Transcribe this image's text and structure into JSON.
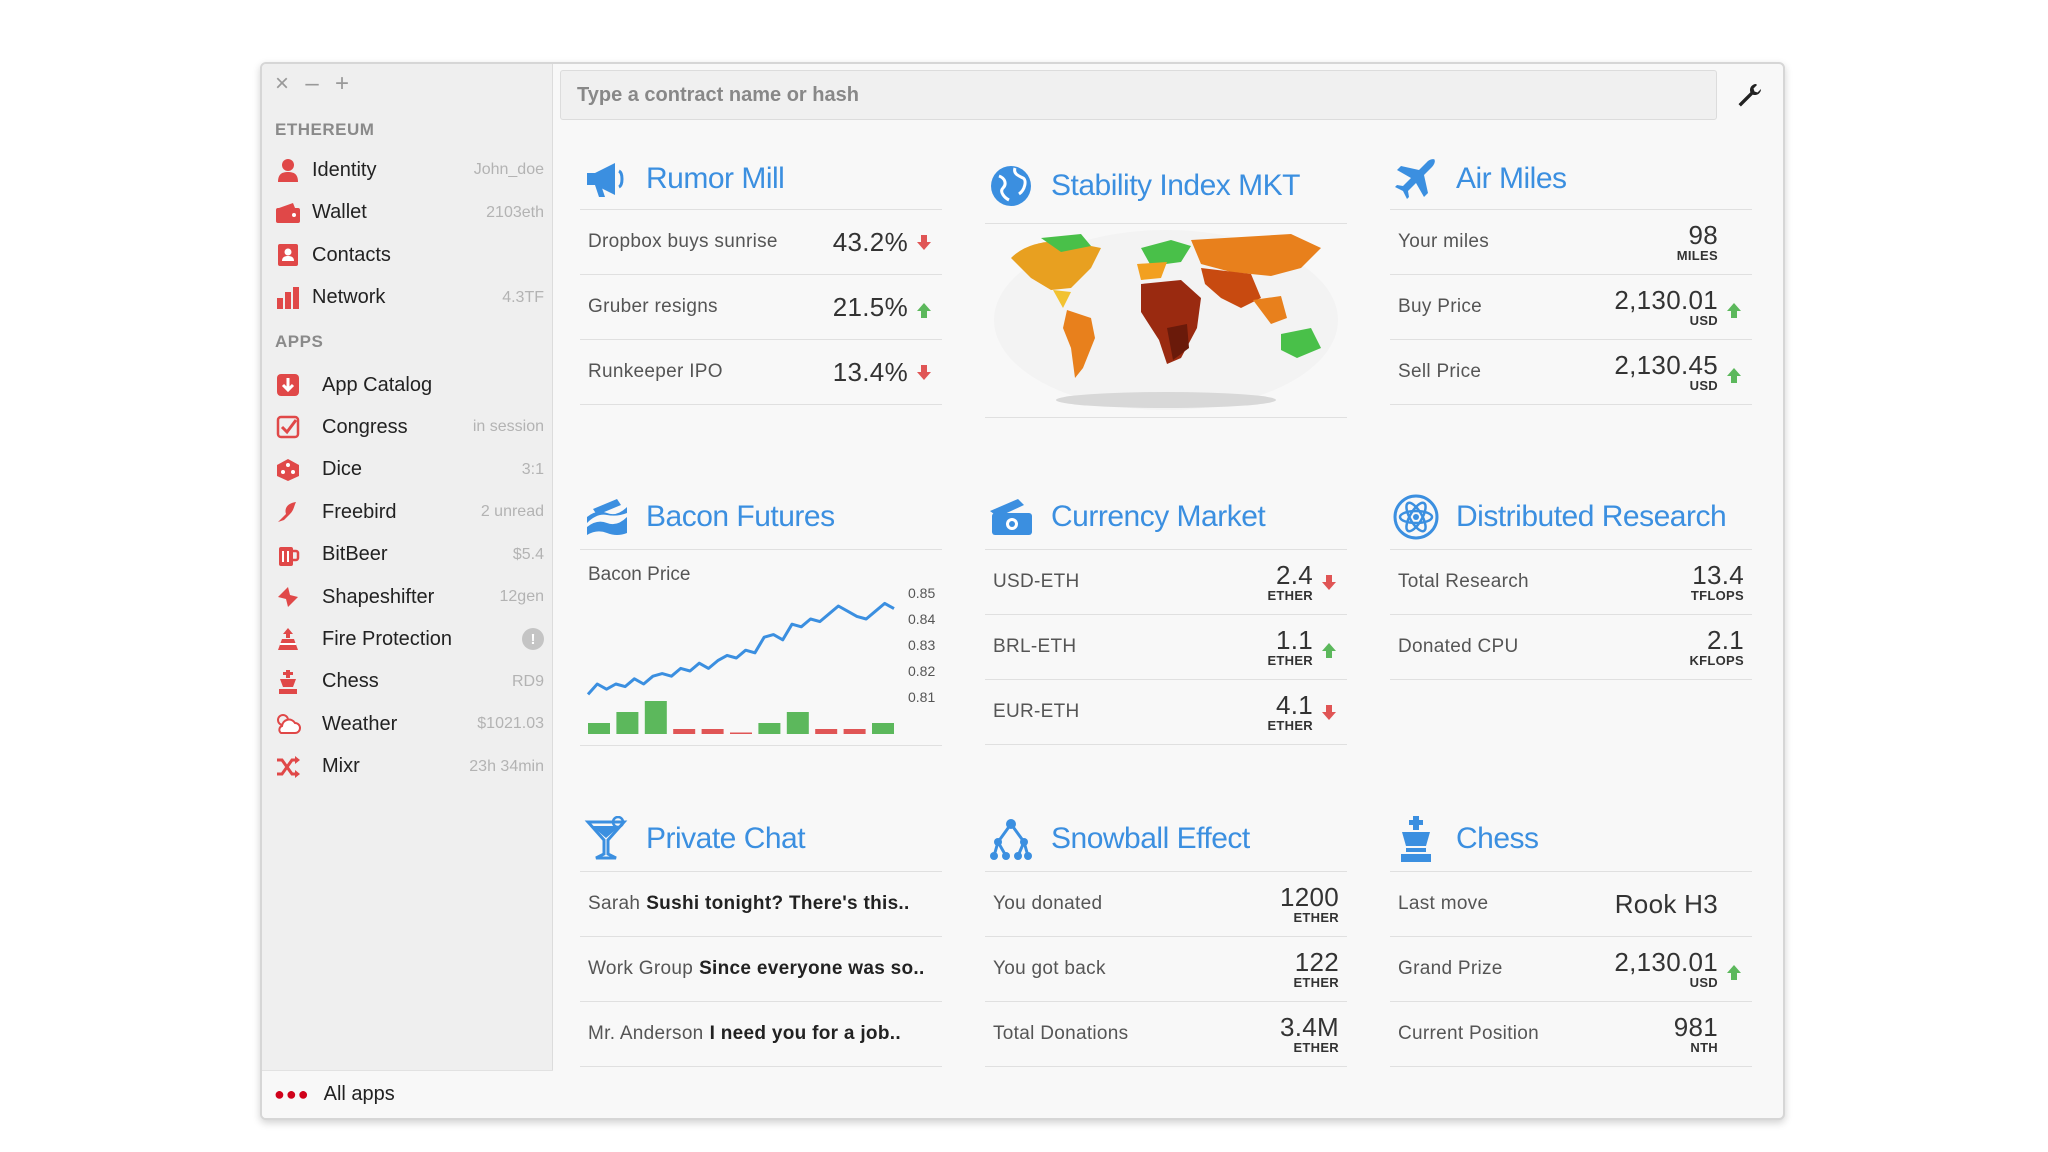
{
  "search": {
    "placeholder": "Type a contract name or hash"
  },
  "sidebar": {
    "ethereum_title": "ETHEREUM",
    "ethereum_items": [
      {
        "label": "Identity",
        "meta": "John_doe",
        "icon": "user-icon"
      },
      {
        "label": "Wallet",
        "meta": "2103eth",
        "icon": "wallet-icon"
      },
      {
        "label": "Contacts",
        "meta": "",
        "icon": "contacts-icon"
      },
      {
        "label": "Network",
        "meta": "4.3TF",
        "icon": "bar-chart-icon"
      }
    ],
    "apps_title": "APPS",
    "app_items": [
      {
        "label": "App Catalog",
        "meta": "",
        "icon": "catalog-icon"
      },
      {
        "label": "Congress",
        "meta": "in session",
        "icon": "checkbox-icon"
      },
      {
        "label": "Dice",
        "meta": "3:1",
        "icon": "dice-icon"
      },
      {
        "label": "Freebird",
        "meta": "2 unread",
        "icon": "bird-icon"
      },
      {
        "label": "BitBeer",
        "meta": "$5.4",
        "icon": "beer-icon"
      },
      {
        "label": "Shapeshifter",
        "meta": "12gen",
        "icon": "shapeshifter-icon"
      },
      {
        "label": "Fire Protection",
        "meta": "!",
        "icon": "fire-icon"
      },
      {
        "label": "Chess",
        "meta": "RD9",
        "icon": "chess-icon"
      },
      {
        "label": "Weather",
        "meta": "$1021.03",
        "icon": "weather-icon"
      },
      {
        "label": "Mixr",
        "meta": "23h 34min",
        "icon": "shuffle-icon"
      }
    ],
    "all_apps": "All apps"
  },
  "rumor_mill": {
    "title": "Rumor Mill",
    "rows": [
      {
        "label": "Dropbox buys sunrise",
        "value": "43.2%",
        "trend": "down"
      },
      {
        "label": "Gruber resigns",
        "value": "21.5%",
        "trend": "up"
      },
      {
        "label": "Runkeeper IPO",
        "value": "13.4%",
        "trend": "down"
      }
    ]
  },
  "stability": {
    "title": "Stability Index MKT"
  },
  "air_miles": {
    "title": "Air Miles",
    "rows": [
      {
        "label": "Your miles",
        "value": "98",
        "unit": "MILES",
        "trend": ""
      },
      {
        "label": "Buy Price",
        "value": "2,130.01",
        "unit": "USD",
        "trend": "up"
      },
      {
        "label": "Sell Price",
        "value": "2,130.45",
        "unit": "USD",
        "trend": "up"
      }
    ]
  },
  "bacon": {
    "title": "Bacon Futures",
    "label": "Bacon Price",
    "ticks": [
      "0.85",
      "0.84",
      "0.83",
      "0.82",
      "0.81"
    ]
  },
  "currency": {
    "title": "Currency Market",
    "rows": [
      {
        "label": "USD-ETH",
        "value": "2.4",
        "unit": "ETHER",
        "trend": "down"
      },
      {
        "label": "BRL-ETH",
        "value": "1.1",
        "unit": "ETHER",
        "trend": "up"
      },
      {
        "label": "EUR-ETH",
        "value": "4.1",
        "unit": "ETHER",
        "trend": "down"
      }
    ]
  },
  "research": {
    "title": "Distributed Research",
    "rows": [
      {
        "label": "Total Research",
        "value": "13.4",
        "unit": "TFLOPS"
      },
      {
        "label": "Donated CPU",
        "value": "2.1",
        "unit": "KFLOPS"
      }
    ]
  },
  "chat": {
    "title": "Private Chat",
    "rows": [
      {
        "sender": "Sarah",
        "message": "Sushi tonight? There's this.."
      },
      {
        "sender": "Work Group",
        "message": "Since everyone was so.."
      },
      {
        "sender": "Mr. Anderson",
        "message": "I need you for a job.."
      }
    ]
  },
  "snowball": {
    "title": "Snowball Effect",
    "rows": [
      {
        "label": "You donated",
        "value": "1200",
        "unit": "ETHER"
      },
      {
        "label": "You got back",
        "value": "122",
        "unit": "ETHER"
      },
      {
        "label": "Total Donations",
        "value": "3.4M",
        "unit": "ETHER"
      }
    ]
  },
  "chess": {
    "title": "Chess",
    "rows": [
      {
        "label": "Last move",
        "value": "Rook H3",
        "unit": "",
        "trend": ""
      },
      {
        "label": "Grand Prize",
        "value": "2,130.01",
        "unit": "USD",
        "trend": "up"
      },
      {
        "label": "Current Position",
        "value": "981",
        "unit": "NTH",
        "trend": ""
      }
    ]
  },
  "colors": {
    "accent": "#3b8fe0",
    "up": "#5cb85c",
    "down": "#e05555",
    "brand_red": "#d0021b"
  },
  "chart_data": {
    "type": "line",
    "title": "Bacon Price",
    "ylim": [
      0.805,
      0.855
    ],
    "line_values": [
      0.811,
      0.815,
      0.813,
      0.815,
      0.814,
      0.817,
      0.815,
      0.818,
      0.819,
      0.818,
      0.821,
      0.82,
      0.823,
      0.821,
      0.824,
      0.826,
      0.825,
      0.828,
      0.827,
      0.833,
      0.834,
      0.832,
      0.838,
      0.837,
      0.84,
      0.839,
      0.842,
      0.845,
      0.843,
      0.841,
      0.84,
      0.843,
      0.846,
      0.844
    ],
    "volume_values": [
      1,
      2,
      3,
      -1,
      -1,
      0,
      1,
      2,
      -1,
      -1,
      1
    ],
    "ticks": [
      0.85,
      0.84,
      0.83,
      0.82,
      0.81
    ]
  }
}
